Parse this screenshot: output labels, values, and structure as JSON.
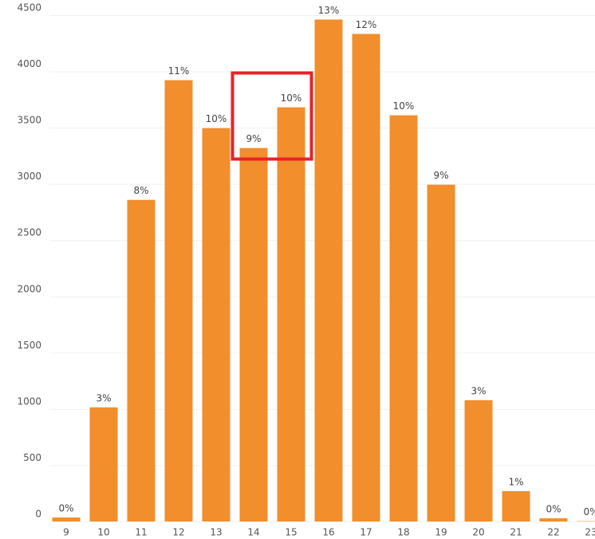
{
  "chart_data": {
    "type": "bar",
    "categories": [
      "9",
      "10",
      "11",
      "12",
      "13",
      "14",
      "15",
      "16",
      "17",
      "18",
      "19",
      "20",
      "21",
      "22",
      "23"
    ],
    "values": [
      35,
      1014,
      2858,
      3922,
      3496,
      3319,
      3681,
      4461,
      4333,
      3610,
      2993,
      1078,
      270,
      28,
      3
    ],
    "percent_labels": [
      "0%",
      "3%",
      "8%",
      "11%",
      "10%",
      "9%",
      "10%",
      "13%",
      "12%",
      "10%",
      "9%",
      "3%",
      "1%",
      "0%",
      "0%"
    ],
    "color": "#f28e2b",
    "ylim": [
      0,
      4500
    ],
    "yticks": [
      0,
      500,
      1000,
      1500,
      2000,
      2500,
      3000,
      3500,
      4000,
      4500
    ],
    "grid": true
  }
}
